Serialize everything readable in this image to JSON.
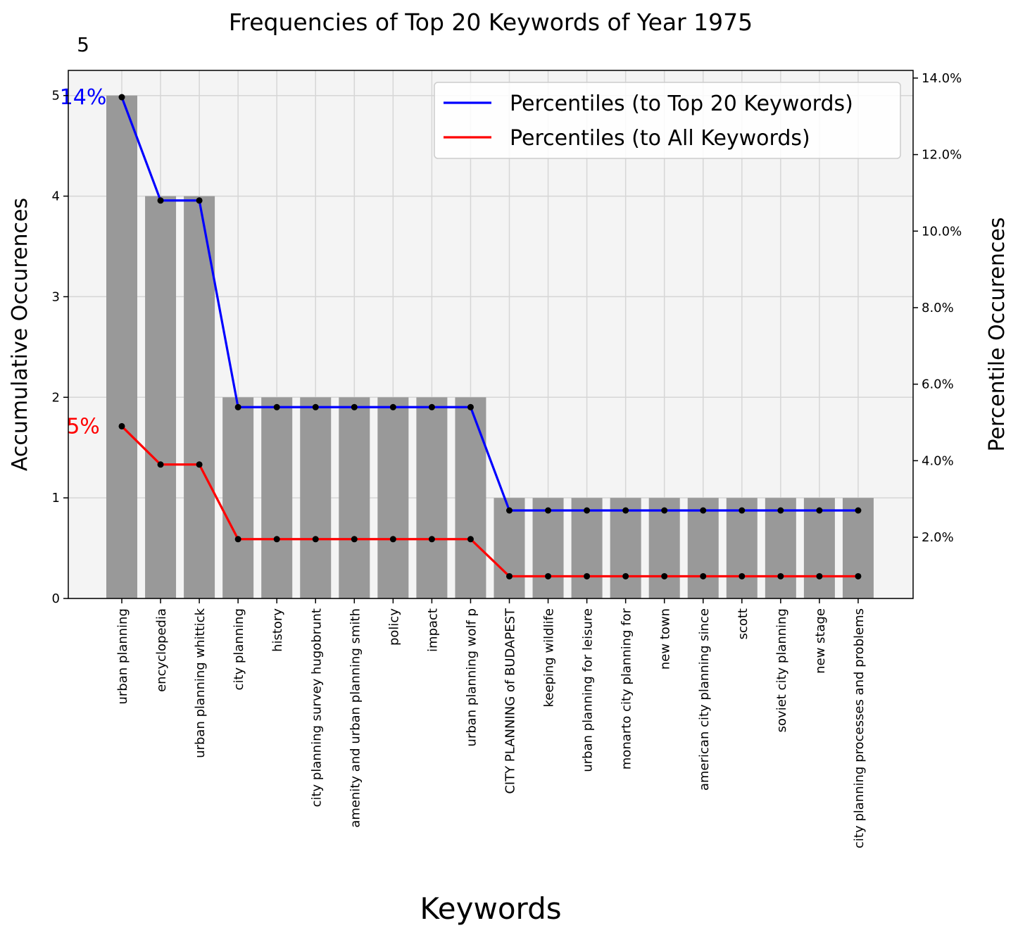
{
  "chart_data": {
    "type": "bar",
    "title": "Frequencies of Top 20 Keywords of Year 1975",
    "xlabel": "Keywords",
    "ylabel": "Accumulative Occurences",
    "y2label": "Percentile Occurences",
    "top_value_label": "5",
    "categories": [
      "urban planning",
      "encyclopedia",
      "urban planning whittick",
      "city planning",
      "history",
      "city planning survey hugobrunt",
      "amenity and urban planning smith",
      "policy",
      "impact",
      "urban planning wolf p",
      "CITY PLANNING of BUDAPEST",
      "keeping wildlife",
      "urban planning for leisure",
      "monarto city planning for",
      "new town",
      "american city planning since",
      "scott",
      "soviet city planning",
      "new stage",
      "city planning processes and problems"
    ],
    "values": [
      5,
      4,
      4,
      2,
      2,
      2,
      2,
      2,
      2,
      2,
      1,
      1,
      1,
      1,
      1,
      1,
      1,
      1,
      1,
      1
    ],
    "ylim": [
      0,
      5.25
    ],
    "yticks": [
      "0",
      "1",
      "2",
      "3",
      "4",
      "5"
    ],
    "y2lim": [
      0.4,
      14.2
    ],
    "y2ticks": [
      "2.0%",
      "4.0%",
      "6.0%",
      "8.0%",
      "10.0%",
      "12.0%",
      "14.0%"
    ],
    "series": [
      {
        "name": "Percentiles (to Top 20 Keywords)",
        "color": "#0000ff",
        "values": [
          13.5,
          10.8,
          10.8,
          5.4,
          5.4,
          5.4,
          5.4,
          5.4,
          5.4,
          5.4,
          2.7,
          2.7,
          2.7,
          2.7,
          2.7,
          2.7,
          2.7,
          2.7,
          2.7,
          2.7
        ],
        "annotation": "14%"
      },
      {
        "name": "Percentiles (to All Keywords)",
        "color": "#ff0000",
        "values": [
          4.9,
          3.9,
          3.9,
          1.95,
          1.95,
          1.95,
          1.95,
          1.95,
          1.95,
          1.95,
          0.98,
          0.98,
          0.98,
          0.98,
          0.98,
          0.98,
          0.98,
          0.98,
          0.98,
          0.98
        ],
        "annotation": "5%"
      }
    ],
    "bar_color": "#999999",
    "grid": true,
    "legend": "top-right"
  }
}
